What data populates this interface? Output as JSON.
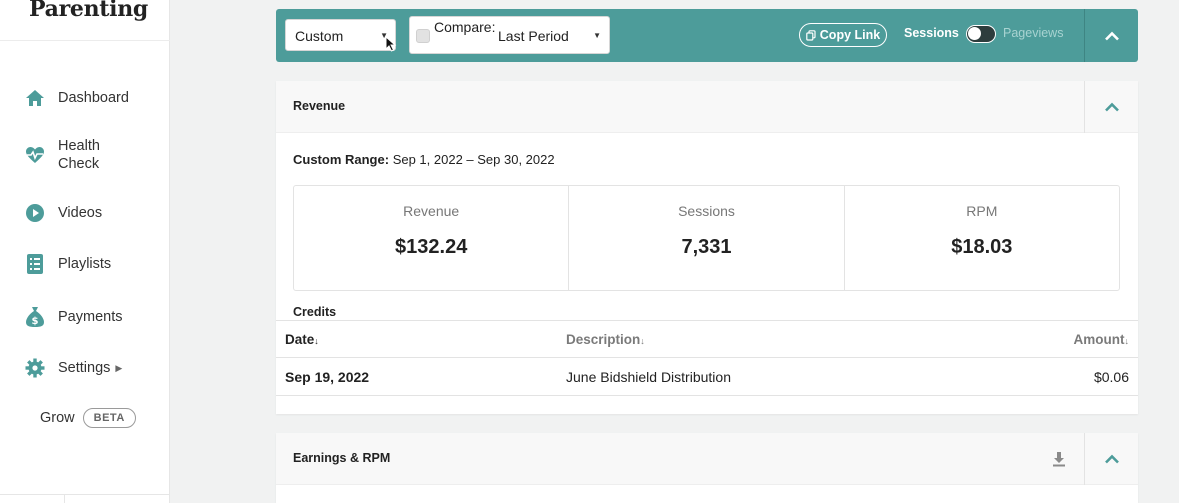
{
  "brand": {
    "name": "Parenting"
  },
  "sidebar": {
    "items": [
      {
        "label": "Dashboard",
        "icon": "home-icon"
      },
      {
        "label": "Health Check",
        "icon": "heartbeat-icon"
      },
      {
        "label": "Videos",
        "icon": "play-icon"
      },
      {
        "label": "Playlists",
        "icon": "list-icon"
      },
      {
        "label": "Payments",
        "icon": "money-bag-icon"
      },
      {
        "label": "Settings",
        "icon": "gear-icon"
      }
    ],
    "grow": {
      "label": "Grow",
      "badge": "BETA"
    }
  },
  "toolbar": {
    "range_select": "Custom",
    "compare_label": "Compare:",
    "compare_period": "Last Period",
    "copy_link": "Copy Link",
    "toggle_left": "Sessions",
    "toggle_right": "Pageviews"
  },
  "revenue_card": {
    "title": "Revenue",
    "range_label": "Custom Range:",
    "range_value": "Sep 1, 2022 – Sep 30, 2022",
    "metrics": [
      {
        "label": "Revenue",
        "value": "$132.24"
      },
      {
        "label": "Sessions",
        "value": "7,331"
      },
      {
        "label": "RPM",
        "value": "$18.03"
      }
    ],
    "credits_title": "Credits",
    "table": {
      "columns": [
        "Date",
        "Description",
        "Amount"
      ],
      "rows": [
        {
          "date": "Sep 19, 2022",
          "description": "June Bidshield Distribution",
          "amount": "$0.06"
        }
      ]
    }
  },
  "earnings_card": {
    "title": "Earnings & RPM"
  },
  "colors": {
    "accent": "#4d9c9a",
    "sidebar_icon": "#4d9c9a"
  }
}
